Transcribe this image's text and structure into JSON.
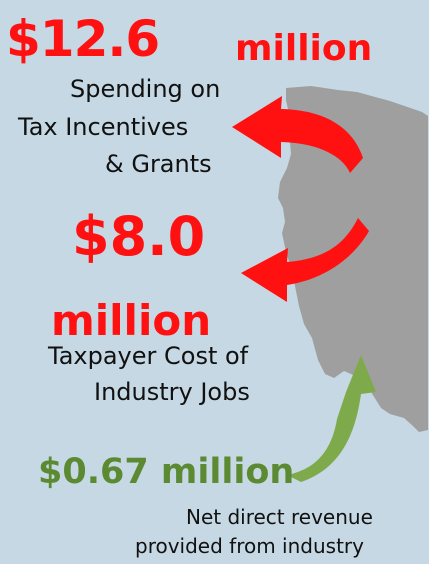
{
  "colors": {
    "background": "#c5d8e3",
    "state": "#9f9f9f",
    "red": "#ff1111",
    "green": "#5b8a33",
    "text": "#111111"
  },
  "icons": {
    "state_shape": "illinois-map-icon",
    "red_arrow_top": "curved-red-arrow-icon",
    "red_arrow_middle": "curved-red-arrow-icon",
    "green_arrow": "curved-green-arrow-icon"
  },
  "figure": {
    "spending": {
      "amount": "$12.6",
      "unit": "million",
      "label_line_1": "Spending on",
      "label_line_2": "Tax Incentives",
      "label_line_3": "& Grants"
    },
    "taxpayer_cost": {
      "amount": "$8.0",
      "unit": "million",
      "label_line_1": "Taxpayer Cost of",
      "label_line_2": "Industry Jobs"
    },
    "net_revenue": {
      "amount": "$0.67 million",
      "label_line_1": "Net direct revenue",
      "label_line_2": "provided from industry"
    }
  }
}
